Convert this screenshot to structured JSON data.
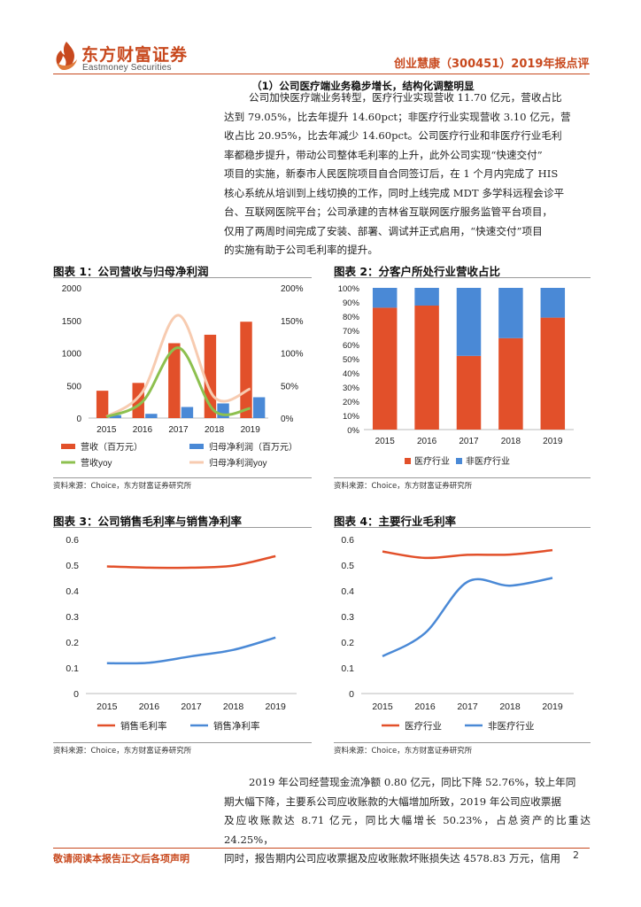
{
  "header": {
    "logo_cn": "东方财富证券",
    "logo_en": "Eastmoney Securities",
    "report_title": "创业慧康（300451）2019年报点评"
  },
  "section": {
    "title": "（1）公司医疗端业务稳步增长，结构化调整明显",
    "para_lines": [
      "公司加快医疗端业务转型，医疗行业实现营收 11.70 亿元，营收占比",
      "达到 79.05%，比去年提升 14.60pct；非医疗行业实现营收 3.10 亿元，营",
      "收占比 20.95%，比去年减少 14.60pct。公司医疗行业和非医疗行业毛利",
      "率都稳步提升，带动公司整体毛利率的上升，此外公司实现“快速交付”",
      "项目的实施，新泰市人民医院项目自合同签订后，在 1 个月内完成了 HIS",
      "核心系统从培训到上线切换的工作，同时上线完成 MDT 多学科远程会诊平",
      "台、互联网医院平台；公司承建的吉林省互联网医疗服务监管平台项目，",
      "仅用了两周时间完成了安装、部署、调试并正式启用，“快速交付”项目",
      "的实施有助于公司毛利率的提升。"
    ]
  },
  "figures": {
    "fig1": {
      "title": "图表 1：公司营收与归母净利润",
      "source": "资料来源：Choice，东方财富证券研究所",
      "legend": [
        "营收（百万元）",
        "归母净利润（百万元）",
        "营收yoy",
        "归母净利润yoy"
      ]
    },
    "fig2": {
      "title": "图表 2：分客户所处行业营收占比",
      "source": "资料来源：Choice，东方财富证券研究所",
      "legend": [
        "医疗行业",
        "非医疗行业"
      ]
    },
    "fig3": {
      "title": "图表 3：公司销售毛利率与销售净利率",
      "source": "资料来源：Choice，东方财富证券研究所",
      "legend": [
        "销售毛利率",
        "销售净利率"
      ]
    },
    "fig4": {
      "title": "图表 4：主要行业毛利率",
      "source": "资料来源：Choice，东方财富证券研究所",
      "legend": [
        "医疗行业",
        "非医疗行业"
      ]
    }
  },
  "colors": {
    "brand": "#c8491e",
    "orange": "#e2502a",
    "blue": "#4a89d6",
    "green": "#8dc04f",
    "peach": "#f7cbb0"
  },
  "chart_data": [
    {
      "type": "bar",
      "categories": [
        "2015",
        "2016",
        "2017",
        "2018",
        "2019"
      ],
      "series": [
        {
          "name": "营收（百万元）",
          "axis": "left",
          "values": [
            420,
            540,
            1150,
            1280,
            1480
          ]
        },
        {
          "name": "归母净利润（百万元）",
          "axis": "left",
          "values": [
            45,
            65,
            170,
            225,
            320
          ]
        },
        {
          "name": "营收yoy",
          "type": "line",
          "axis": "right",
          "values": [
            0.02,
            0.25,
            1.08,
            0.11,
            0.15
          ]
        },
        {
          "name": "归母净利润yoy",
          "type": "line",
          "axis": "right",
          "values": [
            0.02,
            0.4,
            1.58,
            0.32,
            0.45
          ]
        }
      ],
      "ylim": [
        0,
        2000
      ],
      "yticks": [
        0,
        500,
        1000,
        1500,
        2000
      ],
      "y2lim": [
        0,
        2
      ],
      "y2ticks": [
        "0%",
        "50%",
        "100%",
        "150%",
        "200%"
      ]
    },
    {
      "type": "bar",
      "stacked": true,
      "categories": [
        "2015",
        "2016",
        "2017",
        "2018",
        "2019"
      ],
      "series": [
        {
          "name": "医疗行业",
          "values": [
            0.86,
            0.875,
            0.52,
            0.645,
            0.79
          ]
        },
        {
          "name": "非医疗行业",
          "values": [
            0.14,
            0.125,
            0.48,
            0.355,
            0.21
          ]
        }
      ],
      "ylim": [
        0,
        1
      ],
      "yticks": [
        "0%",
        "10%",
        "20%",
        "30%",
        "40%",
        "50%",
        "60%",
        "70%",
        "80%",
        "90%",
        "100%"
      ]
    },
    {
      "type": "line",
      "categories": [
        "2015",
        "2016",
        "2017",
        "2018",
        "2019"
      ],
      "series": [
        {
          "name": "销售毛利率",
          "values": [
            0.495,
            0.49,
            0.49,
            0.498,
            0.535
          ]
        },
        {
          "name": "销售净利率",
          "values": [
            0.118,
            0.12,
            0.145,
            0.17,
            0.218
          ]
        }
      ],
      "ylim": [
        0,
        0.6
      ],
      "yticks": [
        "0",
        "0.1",
        "0.2",
        "0.3",
        "0.4",
        "0.5",
        "0.6"
      ]
    },
    {
      "type": "line",
      "categories": [
        "2015",
        "2016",
        "2017",
        "2018",
        "2019"
      ],
      "series": [
        {
          "name": "医疗行业",
          "values": [
            0.553,
            0.528,
            0.54,
            0.541,
            0.558
          ]
        },
        {
          "name": "非医疗行业",
          "values": [
            0.145,
            0.235,
            0.435,
            0.42,
            0.45
          ]
        }
      ],
      "ylim": [
        0,
        0.6
      ],
      "yticks": [
        "0",
        "0.1",
        "0.2",
        "0.3",
        "0.4",
        "0.5",
        "0.6"
      ]
    }
  ],
  "bottom_para_lines": [
    "2019 年公司经营现金流净额 0.80 亿元，同比下降 52.76%，较上年同",
    "期大幅下降，主要系公司应收账款的大幅增加所致，2019 年公司应收票据",
    "及应收账款达 8.71 亿元，同比大幅增长 50.23%，占总资产的比重达 24.25%，",
    "同时，报告期内公司应收票据及应收账款坏账损失达 4578.83 万元，信用"
  ],
  "footer": {
    "disclaimer": "敬请阅读本报告正文后各项声明",
    "page_number": "2"
  }
}
